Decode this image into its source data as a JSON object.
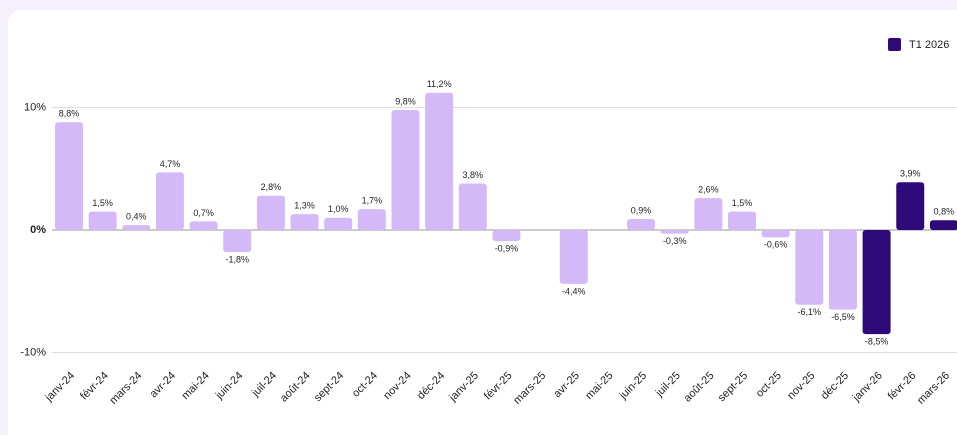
{
  "chart_data": {
    "type": "bar",
    "categories": [
      "janv-24",
      "févr-24",
      "mars-24",
      "avr-24",
      "mai-24",
      "juin-24",
      "juil-24",
      "août-24",
      "sept-24",
      "oct-24",
      "nov-24",
      "déc-24",
      "janv-25",
      "févr-25",
      "mars-25",
      "avr-25",
      "mai-25",
      "juin-25",
      "juil-25",
      "août-25",
      "sept-25",
      "oct-25",
      "nov-25",
      "déc-25",
      "janv-26",
      "févr-26",
      "mars-26"
    ],
    "values": [
      8.8,
      1.5,
      0.4,
      4.7,
      0.7,
      -1.8,
      2.8,
      1.3,
      1.0,
      1.7,
      9.8,
      11.2,
      3.8,
      -0.9,
      null,
      -4.4,
      null,
      0.9,
      -0.3,
      2.6,
      1.5,
      -0.6,
      -6.1,
      -6.5,
      -8.5,
      3.9,
      0.8
    ],
    "value_labels": [
      "8,8%",
      "1,5%",
      "0,4%",
      "4,7%",
      "0,7%",
      "-1,8%",
      "2,8%",
      "1,3%",
      "1,0%",
      "1,7%",
      "9,8%",
      "11,2%",
      "3,8%",
      "-0,9%",
      null,
      "-4,4%",
      null,
      "0,9%",
      "-0,3%",
      "2,6%",
      "1,5%",
      "-0,6%",
      "-6,1%",
      "-6,5%",
      "-8,5%",
      "3,9%",
      "0,8%"
    ],
    "colors": [
      "#d4b9f8",
      "#d4b9f8",
      "#d4b9f8",
      "#d4b9f8",
      "#d4b9f8",
      "#d4b9f8",
      "#d4b9f8",
      "#d4b9f8",
      "#d4b9f8",
      "#d4b9f8",
      "#d4b9f8",
      "#d4b9f8",
      "#d4b9f8",
      "#d4b9f8",
      "#d4b9f8",
      "#d4b9f8",
      "#d4b9f8",
      "#d4b9f8",
      "#d4b9f8",
      "#d4b9f8",
      "#d4b9f8",
      "#d4b9f8",
      "#d4b9f8",
      "#d4b9f8",
      "#2e0a78",
      "#2e0a78",
      "#2e0a78"
    ],
    "legend": [
      {
        "name": "T1 2026",
        "color": "#2e0a78"
      }
    ],
    "ylim": [
      -12,
      12
    ],
    "yticks": [
      {
        "value": -10,
        "label": "-10%"
      },
      {
        "value": 0,
        "label": "0%"
      },
      {
        "value": 10,
        "label": "10%"
      }
    ],
    "grid": true
  }
}
